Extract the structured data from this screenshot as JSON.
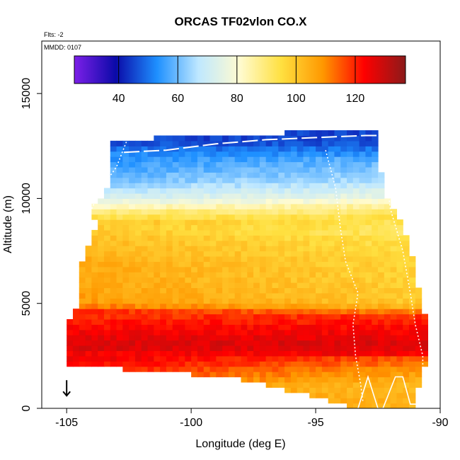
{
  "chart_data": {
    "type": "heatmap",
    "title": "ORCAS TF02vlon CO.X",
    "subtitle_flights": "Flts: -2",
    "subtitle_date": "MMDD: 0107",
    "xlabel": "Longitude (deg E)",
    "ylabel": "Altitude (m)",
    "xlim": [
      -106,
      -90
    ],
    "ylim": [
      0,
      17500
    ],
    "x_ticks": [
      -105,
      -100,
      -95,
      -90
    ],
    "x_tick_labels": [
      "-105",
      "-100",
      "-95",
      "-90"
    ],
    "y_ticks": [
      0,
      5000,
      10000,
      15000
    ],
    "y_tick_labels": [
      "0",
      "5000",
      "10000",
      "15000"
    ],
    "grid": false,
    "colorbar": {
      "placement": "top-inside",
      "range": [
        25,
        137
      ],
      "ticks": [
        40,
        60,
        80,
        100,
        120
      ],
      "tick_labels": [
        "40",
        "60",
        "80",
        "100",
        "120"
      ],
      "stops": [
        "#7d1fe8",
        "#0a0aa8",
        "#1e90ff",
        "#bfe8ff",
        "#fffbd0",
        "#ffe040",
        "#ff9800",
        "#ff0000",
        "#8b1a1a"
      ]
    },
    "altitude_profile_co": [
      {
        "alt": 12750,
        "value": 45
      },
      {
        "alt": 12000,
        "value": 55
      },
      {
        "alt": 11000,
        "value": 62
      },
      {
        "alt": 10500,
        "value": 68
      },
      {
        "alt": 10000,
        "value": 75
      },
      {
        "alt": 9500,
        "value": 88
      },
      {
        "alt": 9000,
        "value": 96
      },
      {
        "alt": 8500,
        "value": 94
      },
      {
        "alt": 8000,
        "value": 97
      },
      {
        "alt": 7000,
        "value": 100
      },
      {
        "alt": 6000,
        "value": 101
      },
      {
        "alt": 5000,
        "value": 103
      },
      {
        "alt": 4500,
        "value": 118
      },
      {
        "alt": 4000,
        "value": 122
      },
      {
        "alt": 3000,
        "value": 128
      },
      {
        "alt": 2000,
        "value": 118
      },
      {
        "alt": 1000,
        "value": 108
      },
      {
        "alt": 500,
        "value": 110
      }
    ],
    "domain_outline": [
      [
        -103.2,
        12800
      ],
      [
        -92.6,
        13300
      ],
      [
        -92.3,
        10500
      ],
      [
        -91.3,
        8200
      ],
      [
        -90.6,
        4300
      ],
      [
        -90.6,
        2000
      ],
      [
        -91.1,
        0
      ],
      [
        -93.4,
        0
      ],
      [
        -95.5,
        700
      ],
      [
        -98.5,
        1500
      ],
      [
        -104.3,
        2000
      ],
      [
        -105.0,
        2100
      ],
      [
        -105.0,
        4000
      ],
      [
        -104.4,
        5000
      ],
      [
        -104.5,
        6500
      ],
      [
        -103.8,
        8700
      ],
      [
        -104.0,
        9600
      ],
      [
        -103.4,
        10200
      ],
      [
        -103.2,
        12800
      ]
    ],
    "flight_track_dashed": [
      [
        -102.7,
        12200
      ],
      [
        -101.0,
        12300
      ],
      [
        -99.0,
        12600
      ],
      [
        -97.0,
        12800
      ],
      [
        -95.0,
        12900
      ],
      [
        -93.0,
        13000
      ],
      [
        -92.4,
        13000
      ]
    ],
    "flight_track_descent_east": [
      [
        -92.4,
        12900
      ],
      [
        -92.2,
        11500
      ],
      [
        -92.0,
        9500
      ],
      [
        -91.5,
        7500
      ],
      [
        -91.2,
        5500
      ],
      [
        -91.0,
        4000
      ],
      [
        -90.7,
        2500
      ],
      [
        -90.7,
        1500
      ]
    ],
    "flight_track_descent_mid": [
      [
        -94.6,
        12300
      ],
      [
        -94.2,
        10500
      ],
      [
        -94.0,
        8500
      ],
      [
        -93.8,
        7000
      ],
      [
        -93.3,
        5500
      ],
      [
        -93.5,
        4000
      ],
      [
        -93.4,
        2500
      ],
      [
        -93.2,
        1200
      ],
      [
        -93.1,
        300
      ]
    ],
    "flight_track_west": [
      [
        -102.6,
        12700
      ],
      [
        -103.0,
        11500
      ],
      [
        -103.6,
        10500
      ],
      [
        -104.0,
        9500
      ],
      [
        -104.5,
        8000
      ],
      [
        -104.8,
        6500
      ],
      [
        -105.0,
        5000
      ],
      [
        -105.1,
        3500
      ],
      [
        -105.1,
        2300
      ]
    ],
    "low_level_tracks": [
      [
        -93.3,
        0
      ],
      [
        -92.9,
        1500
      ],
      [
        -92.5,
        0
      ],
      [
        -92.3,
        0
      ],
      [
        -91.8,
        1500
      ],
      [
        -91.5,
        1500
      ],
      [
        -91.2,
        200
      ],
      [
        -90.9,
        200
      ]
    ],
    "marker_arrow": {
      "x": -105.0,
      "alt": 600
    }
  }
}
